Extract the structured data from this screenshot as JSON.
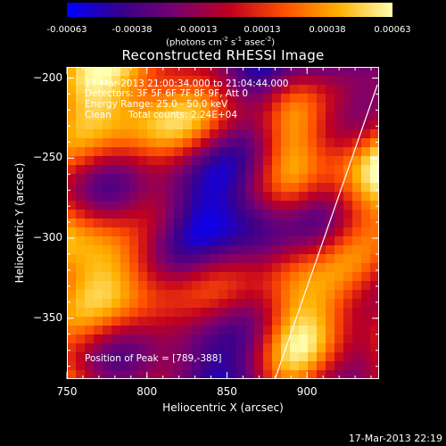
{
  "chart_data": {
    "type": "heatmap",
    "title": "Reconstructed RHESSI Image",
    "xlabel": "Heliocentric X (arcsec)",
    "ylabel": "Heliocentric Y (arcsec)",
    "xlim": [
      750,
      945
    ],
    "ylim": [
      -388,
      -193
    ],
    "x_ticks": [
      750,
      800,
      850,
      900
    ],
    "y_ticks": [
      -200,
      -250,
      -300,
      -350
    ],
    "colorbar": {
      "ticks": [
        "-0.00063",
        "-0.00038",
        "-0.00013",
        "0.00013",
        "0.00038",
        "0.00063"
      ],
      "range": [
        -0.00063,
        0.00063
      ],
      "colormap": [
        "#0000ff",
        "#3a008c",
        "#7a0070",
        "#c00020",
        "#ff5000",
        "#ffb000",
        "#ffffb0"
      ]
    },
    "annotations": {
      "time_range": "17-Mar-2013 21:00:34.000 to 21:04:44.000",
      "detectors": "Detectors: 3F 5F 6F 7F 8F 9F, Att 0",
      "energy": "Energy Range: 25.0 - 50.0 keV",
      "clean": "Clean",
      "counts": "Total counts: 2.24E+04",
      "peak": "Position of Peak = [789,-388]"
    },
    "limb_line": [
      [
        880,
        -388
      ],
      [
        944,
        -204
      ]
    ],
    "timestamp": "17-Mar-2013 22:19"
  },
  "colorbar_unit_base": "(photons cm",
  "colorbar_unit_exp1": "-2",
  "colorbar_unit_mid": " s",
  "colorbar_unit_exp2": "-1",
  "colorbar_unit_mid2": " asec",
  "colorbar_unit_exp3": "-2",
  "colorbar_unit_end": ")"
}
